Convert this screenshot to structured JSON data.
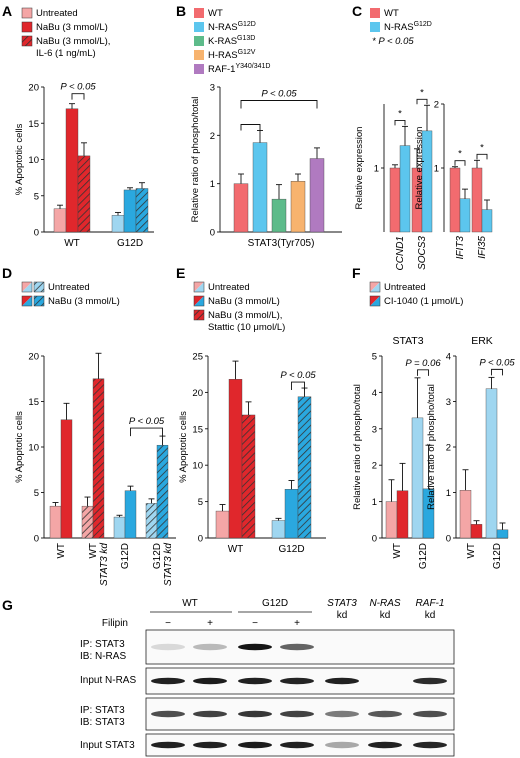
{
  "colors": {
    "wt_light": "#f4a6a6",
    "wt_dark": "#e0272c",
    "g12d_light": "#9fd6f0",
    "g12d_dark": "#2aa8df",
    "wt": "#f26b6f",
    "nras": "#5cc6ee",
    "kras": "#5dbb8a",
    "hras": "#f7b36e",
    "raf1": "#b07ac0"
  },
  "panel_labels": [
    "A",
    "B",
    "C",
    "D",
    "E",
    "F",
    "G"
  ],
  "legends": {
    "A": [
      "Untreated",
      "NaBu (3 mmol/L)",
      "NaBu (3 mmol/L),",
      "IL-6 (1 ng/mL)"
    ],
    "B": [
      "WT",
      "N-RAS",
      "K-RAS",
      "H-RAS",
      "RAF-1"
    ],
    "B_sup": [
      "G12D",
      "G13D",
      "G12V",
      "Y340/341D"
    ],
    "C": [
      "WT",
      "N-RAS",
      "* P < 0.05"
    ],
    "C_sup": "G12D",
    "D": [
      "Untreated",
      "NaBu (3 mmol/L)"
    ],
    "E": [
      "Untreated",
      "NaBu (3 mmol/L)",
      "NaBu (3 mmol/L),",
      "Stattic (10 μmol/L)"
    ],
    "F": [
      "Untreated",
      "CI-1040 (1 μmol/L)"
    ]
  },
  "chart_data": [
    {
      "panel": "A",
      "type": "bar",
      "ylabel": "% Apoptotic cells",
      "ylim": [
        0,
        20
      ],
      "yticks": [
        "0",
        "5",
        "10",
        "15",
        "20"
      ],
      "categories": [
        "WT",
        "G12D"
      ],
      "series": [
        {
          "name": "Untreated",
          "values": [
            3.2,
            2.3
          ],
          "errors": [
            0.5,
            0.4
          ]
        },
        {
          "name": "NaBu (3 mmol/L)",
          "values": [
            17.0,
            5.8
          ],
          "errors": [
            0.7,
            0.3
          ]
        },
        {
          "name": "NaBu (3 mmol/L), IL-6 (1 ng/mL)",
          "values": [
            10.5,
            6.0
          ],
          "errors": [
            1.8,
            0.8
          ]
        }
      ],
      "annotation": "P < 0.05"
    },
    {
      "panel": "B",
      "type": "bar",
      "ylabel": "Relative ratio of phospho/total",
      "ylim": [
        0,
        3
      ],
      "yticks": [
        "0",
        "1",
        "2",
        "3"
      ],
      "categories": [
        "STAT3(Tyr705)"
      ],
      "series": [
        {
          "name": "WT",
          "values": [
            1.0
          ],
          "errors": [
            0.2
          ]
        },
        {
          "name": "N-RAS G12D",
          "values": [
            1.85
          ],
          "errors": [
            0.25
          ]
        },
        {
          "name": "K-RAS G13D",
          "values": [
            0.68
          ],
          "errors": [
            0.3
          ]
        },
        {
          "name": "H-RAS G12V",
          "values": [
            1.05
          ],
          "errors": [
            0.15
          ]
        },
        {
          "name": "RAF-1 Y340/341D",
          "values": [
            1.52
          ],
          "errors": [
            0.22
          ]
        }
      ],
      "annotation": "P < 0.05"
    },
    {
      "panel": "C-left",
      "type": "bar",
      "ylabel": "Relative expression",
      "ylim": [
        0,
        2
      ],
      "yticks": [
        "1"
      ],
      "categories": [
        "CCND1",
        "SOCS3"
      ],
      "series": [
        {
          "name": "WT",
          "values": [
            1.0,
            1.0
          ],
          "errors": [
            0.05,
            0.3
          ]
        },
        {
          "name": "N-RAS G12D",
          "values": [
            1.35,
            1.58
          ],
          "errors": [
            0.3,
            0.4
          ]
        }
      ],
      "annotation": "*"
    },
    {
      "panel": "C-right",
      "type": "bar",
      "ylabel": "Relative expression",
      "ylim": [
        0,
        2
      ],
      "yticks": [
        "1",
        "2"
      ],
      "categories": [
        "IFIT3",
        "IFI35"
      ],
      "series": [
        {
          "name": "WT",
          "values": [
            1.0,
            1.0
          ],
          "errors": [
            0.02,
            0.12
          ]
        },
        {
          "name": "N-RAS G12D",
          "values": [
            0.52,
            0.35
          ],
          "errors": [
            0.15,
            0.15
          ]
        }
      ],
      "annotation": "*"
    },
    {
      "panel": "D",
      "type": "bar",
      "ylabel": "% Apoptotic cells",
      "ylim": [
        0,
        20
      ],
      "yticks": [
        "0",
        "5",
        "10",
        "15",
        "20"
      ],
      "categories": [
        "WT",
        "WT STAT3 kd",
        "G12D",
        "G12D STAT3 kd"
      ],
      "series": [
        {
          "name": "Untreated",
          "values": [
            3.5,
            3.5,
            2.3,
            3.8
          ],
          "errors": [
            0.4,
            1.0,
            0.2,
            0.5
          ]
        },
        {
          "name": "NaBu (3 mmol/L)",
          "values": [
            13.0,
            17.5,
            5.2,
            10.2
          ],
          "errors": [
            1.8,
            2.8,
            0.5,
            1.0
          ]
        }
      ],
      "annotation": "P < 0.05"
    },
    {
      "panel": "E",
      "type": "bar",
      "ylabel": "% Apoptotic cells",
      "ylim": [
        0,
        25
      ],
      "yticks": [
        "0",
        "5",
        "10",
        "15",
        "20",
        "25"
      ],
      "categories": [
        "WT",
        "G12D"
      ],
      "series": [
        {
          "name": "Untreated",
          "values": [
            3.7,
            2.4
          ],
          "errors": [
            0.9,
            0.3
          ]
        },
        {
          "name": "NaBu (3 mmol/L)",
          "values": [
            21.8,
            6.7
          ],
          "errors": [
            2.5,
            1.2
          ]
        },
        {
          "name": "NaBu (3 mmol/L), Stattic (10 μmol/L)",
          "values": [
            16.9,
            19.4
          ],
          "errors": [
            1.8,
            1.2
          ]
        }
      ],
      "annotation": "P < 0.05"
    },
    {
      "panel": "F-STAT3",
      "type": "bar",
      "title": "STAT3",
      "ylabel": "Relative ratio of phospho/total",
      "ylim": [
        0,
        5
      ],
      "yticks": [
        "0",
        "1",
        "2",
        "3",
        "4",
        "5"
      ],
      "categories": [
        "WT",
        "G12D"
      ],
      "series": [
        {
          "name": "Untreated",
          "values": [
            1.0,
            3.3
          ],
          "errors": [
            0.6,
            1.1
          ]
        },
        {
          "name": "CI-1040 (1 μmol/L)",
          "values": [
            1.3,
            1.35
          ],
          "errors": [
            0.75,
            1.2
          ]
        }
      ],
      "annotation": "P = 0.06"
    },
    {
      "panel": "F-ERK",
      "type": "bar",
      "title": "ERK",
      "ylabel": "Relative ratio of phospho/total",
      "ylim": [
        0,
        4
      ],
      "yticks": [
        "0",
        "1",
        "2",
        "3",
        "4"
      ],
      "categories": [
        "WT",
        "G12D"
      ],
      "series": [
        {
          "name": "Untreated",
          "values": [
            1.05,
            3.28
          ],
          "errors": [
            0.45,
            0.25
          ]
        },
        {
          "name": "CI-1040 (1 μmol/L)",
          "values": [
            0.3,
            0.18
          ],
          "errors": [
            0.08,
            0.15
          ]
        }
      ],
      "annotation": "P < 0.05"
    }
  ],
  "blot": {
    "groups": [
      "WT",
      "G12D"
    ],
    "filipin_label": "Filipin",
    "filipin_marks": [
      "−",
      "+",
      "−",
      "+"
    ],
    "kd_lanes": [
      "STAT3",
      "N-RAS",
      "RAF-1"
    ],
    "kd_suffix": "kd",
    "rows": [
      {
        "label1": "IP: STAT3",
        "label2": "IB: N-RAS"
      },
      {
        "label1": "Input N-RAS",
        "label2": ""
      },
      {
        "label1": "IP: STAT3",
        "label2": "IB: STAT3"
      },
      {
        "label1": "Input STAT3",
        "label2": ""
      }
    ],
    "band_intensity": [
      [
        0.08,
        0.22,
        0.95,
        0.6,
        0.0,
        0.0,
        0.0
      ],
      [
        0.9,
        0.92,
        0.9,
        0.88,
        0.9,
        0.0,
        0.85
      ],
      [
        0.7,
        0.75,
        0.8,
        0.75,
        0.5,
        0.65,
        0.7
      ],
      [
        0.9,
        0.9,
        0.92,
        0.9,
        0.3,
        0.9,
        0.88
      ]
    ]
  }
}
